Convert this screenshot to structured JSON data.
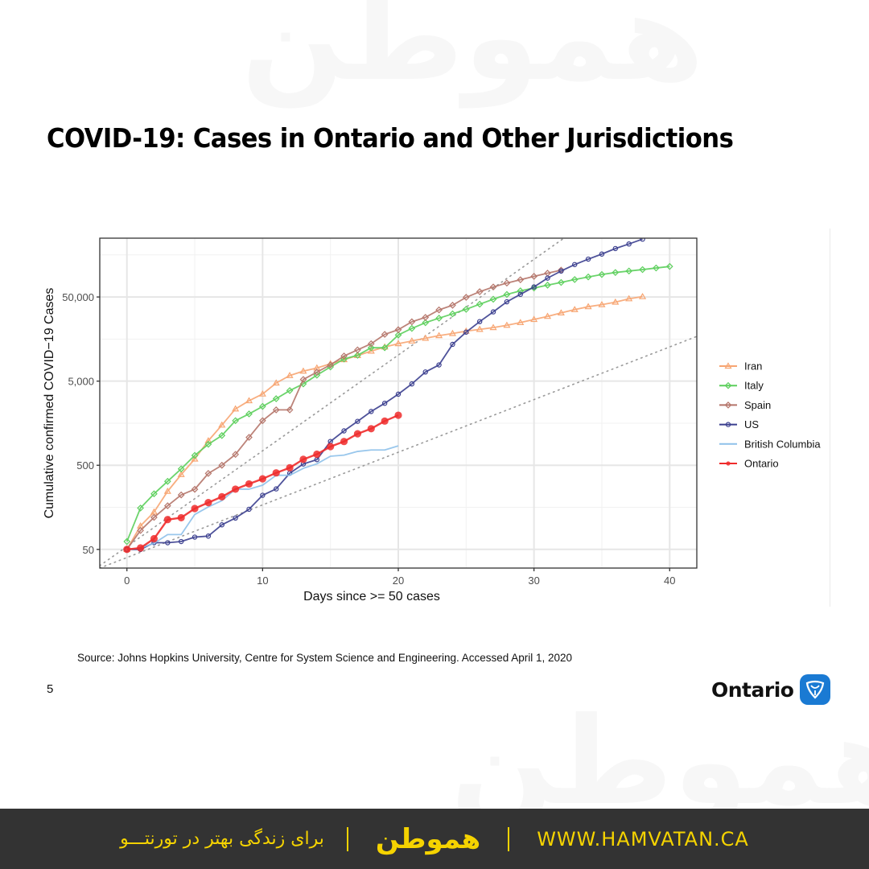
{
  "slide": {
    "title": "COVID-19: Cases in Ontario and Other Jurisdictions",
    "source": "Source: Johns Hopkins University, Centre for System Science and Engineering. Accessed April 1, 2020",
    "page_number": "5",
    "logo_text": "Ontario"
  },
  "footer": {
    "tagline": "برای زندگی بهتر در تورنتـــو",
    "brand": "هموطن",
    "url": "WWW.HAMVATAN.CA",
    "accent_color": "#f5d300",
    "background_color": "#333333"
  },
  "watermark": {
    "text": "هموطن"
  },
  "chart_data": {
    "type": "line",
    "title": "",
    "xlabel": "Days since >= 50 cases",
    "ylabel": "Cumulative confirmed COVID−19 Cases",
    "yscale": "log",
    "xlim": [
      -2,
      42
    ],
    "ylim": [
      30,
      250000
    ],
    "x_ticks": [
      0,
      10,
      20,
      30,
      40
    ],
    "x_tick_labels": [
      "0",
      "10",
      "20",
      "30",
      "40"
    ],
    "y_ticks": [
      50,
      500,
      5000,
      50000
    ],
    "y_tick_labels": [
      "50",
      "500",
      "5,000",
      "50,000"
    ],
    "grid": true,
    "legend_position": "right",
    "reference_lines": [
      {
        "name": "doubling-reference-fast",
        "style": "dotted",
        "from": [
          -2,
          32
        ],
        "to": [
          34,
          400000
        ]
      },
      {
        "name": "doubling-reference-slow",
        "style": "dotted",
        "from": [
          -2,
          30
        ],
        "to": [
          42,
          17000
        ]
      }
    ],
    "series": [
      {
        "name": "Iran",
        "color": "#f7a572",
        "marker": "triangle",
        "x": [
          0,
          1,
          2,
          3,
          4,
          5,
          6,
          7,
          8,
          9,
          10,
          11,
          12,
          13,
          14,
          15,
          16,
          17,
          18,
          19,
          20,
          21,
          22,
          23,
          24,
          25,
          26,
          27,
          28,
          29,
          30,
          31,
          32,
          33,
          34,
          35,
          36,
          37,
          38
        ],
        "values": [
          50,
          95,
          139,
          245,
          388,
          593,
          978,
          1501,
          2336,
          2922,
          3513,
          4747,
          5823,
          6566,
          7161,
          8042,
          9000,
          10075,
          11364,
          12729,
          13938,
          14991,
          16169,
          17361,
          18407,
          19644,
          20610,
          21638,
          23049,
          24811,
          27017,
          29406,
          32332,
          35408,
          38309,
          40501,
          43385,
          47593,
          50468
        ]
      },
      {
        "name": "Italy",
        "color": "#5ccf5c",
        "marker": "diamond",
        "x": [
          0,
          1,
          2,
          3,
          4,
          5,
          6,
          7,
          8,
          9,
          10,
          11,
          12,
          13,
          14,
          15,
          16,
          17,
          18,
          19,
          20,
          21,
          22,
          23,
          24,
          25,
          26,
          27,
          28,
          29,
          30,
          31,
          32,
          33,
          34,
          35,
          36,
          37,
          38,
          39,
          40
        ],
        "values": [
          62,
          155,
          229,
          322,
          453,
          655,
          888,
          1128,
          1694,
          2036,
          2502,
          3089,
          3858,
          4636,
          5883,
          7375,
          9172,
          10149,
          12462,
          12462,
          17660,
          21157,
          24747,
          27980,
          31506,
          35713,
          41035,
          47021,
          53578,
          59138,
          63927,
          69176,
          74386,
          80589,
          86498,
          92472,
          97689,
          101739,
          105792,
          110574,
          115242
        ]
      },
      {
        "name": "Spain",
        "color": "#b5756a",
        "marker": "diamond",
        "x": [
          0,
          1,
          2,
          3,
          4,
          5,
          6,
          7,
          8,
          9,
          10,
          11,
          12,
          13,
          14,
          15,
          16,
          17,
          18,
          19,
          20,
          21,
          22,
          23,
          24,
          25,
          26,
          27,
          28,
          29,
          30,
          31,
          32
        ],
        "values": [
          50,
          84,
          120,
          165,
          222,
          259,
          400,
          500,
          673,
          1073,
          1695,
          2277,
          2277,
          5232,
          6391,
          7798,
          9942,
          11748,
          13910,
          17963,
          20410,
          25374,
          28603,
          35136,
          39885,
          49515,
          57786,
          65719,
          73235,
          80110,
          87956,
          95923,
          104118
        ]
      },
      {
        "name": "US",
        "color": "#3b3f8f",
        "marker": "circle",
        "x": [
          0,
          1,
          2,
          3,
          4,
          5,
          6,
          7,
          8,
          9,
          10,
          11,
          12,
          13,
          14,
          15,
          16,
          17,
          18,
          19,
          20,
          21,
          22,
          23,
          24,
          25,
          26,
          27,
          28,
          29,
          30,
          31,
          32,
          33,
          34,
          35,
          36,
          37,
          38
        ],
        "values": [
          50,
          50,
          60,
          60,
          62,
          70,
          72,
          98,
          118,
          150,
          220,
          262,
          402,
          518,
          583,
          959,
          1281,
          1663,
          2179,
          2727,
          3499,
          4632,
          6421,
          7786,
          13680,
          19101,
          25493,
          33276,
          43847,
          53740,
          65778,
          83836,
          101657,
          121478,
          140886,
          161807,
          188172,
          213372,
          243453
        ]
      },
      {
        "name": "British Columbia",
        "color": "#8ec1ea",
        "marker": "none",
        "x": [
          0,
          1,
          2,
          3,
          4,
          5,
          6,
          7,
          8,
          9,
          10,
          11,
          12,
          13,
          14,
          15,
          16,
          17,
          18,
          19,
          20
        ],
        "values": [
          50,
          52,
          59,
          75,
          75,
          130,
          160,
          190,
          260,
          260,
          290,
          380,
          380,
          460,
          520,
          640,
          660,
          730,
          760,
          760,
          850
        ]
      },
      {
        "name": "Ontario",
        "color": "#ef2b2b",
        "marker": "filled-circle",
        "x": [
          0,
          1,
          2,
          3,
          4,
          5,
          6,
          7,
          8,
          9,
          10,
          11,
          12,
          13,
          14,
          15,
          16,
          17,
          18,
          19,
          20
        ],
        "values": [
          50,
          52,
          67,
          113,
          119,
          153,
          180,
          211,
          260,
          300,
          345,
          406,
          467,
          588,
          676,
          833,
          958,
          1183,
          1360,
          1675,
          1966
        ]
      }
    ]
  }
}
